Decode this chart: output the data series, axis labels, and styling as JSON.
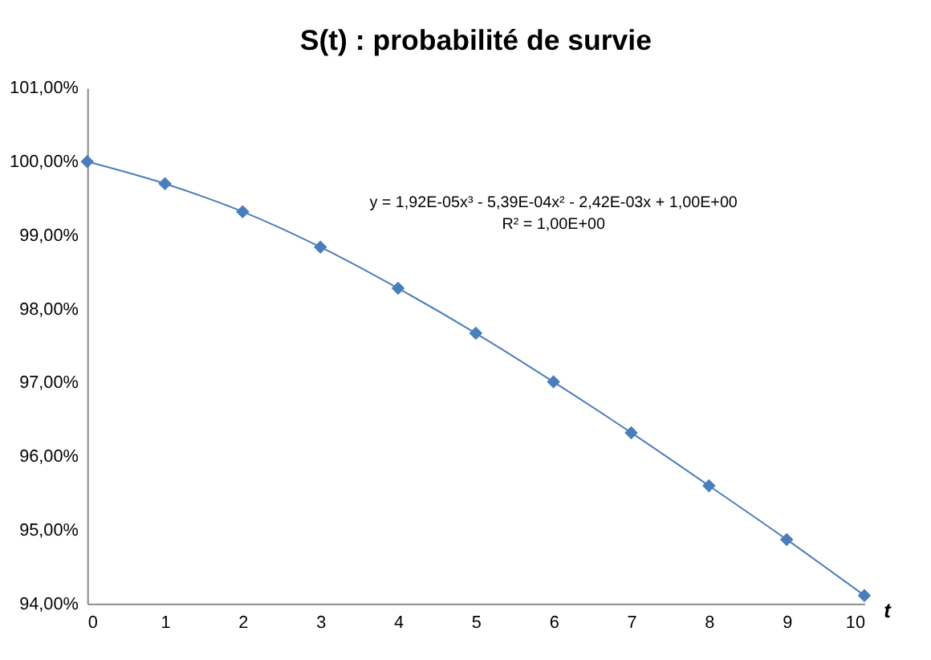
{
  "chart_data": {
    "type": "line",
    "title": "S(t) : probabilité de survie",
    "xlabel": "t",
    "x": [
      0,
      1,
      2,
      3,
      4,
      5,
      6,
      7,
      8,
      9,
      10
    ],
    "series": [
      {
        "color": "#4a7ebb",
        "values": [
          100.0,
          99.7,
          99.32,
          98.84,
          98.28,
          97.67,
          97.01,
          96.32,
          95.6,
          94.87,
          94.11
        ]
      }
    ],
    "marker": "diamond",
    "line_style": "solid",
    "grid": false,
    "xlim": [
      0,
      10
    ],
    "xticks": [
      0,
      1,
      2,
      3,
      4,
      5,
      6,
      7,
      8,
      9,
      10
    ],
    "ylim": [
      94,
      101
    ],
    "yticks": [
      {
        "value": 94,
        "label": "94,00%"
      },
      {
        "value": 95,
        "label": "95,00%"
      },
      {
        "value": 96,
        "label": "96,00%"
      },
      {
        "value": 97,
        "label": "97,00%"
      },
      {
        "value": 98,
        "label": "98,00%"
      },
      {
        "value": 99,
        "label": "99,00%"
      },
      {
        "value": 100,
        "label": "100,00%"
      },
      {
        "value": 101,
        "label": "101,00%"
      }
    ],
    "annotations": [
      "y = 1,92E-05x³ - 5,39E-04x² - 2,42E-03x + 1,00E+00",
      "R² = 1,00E+00"
    ]
  }
}
